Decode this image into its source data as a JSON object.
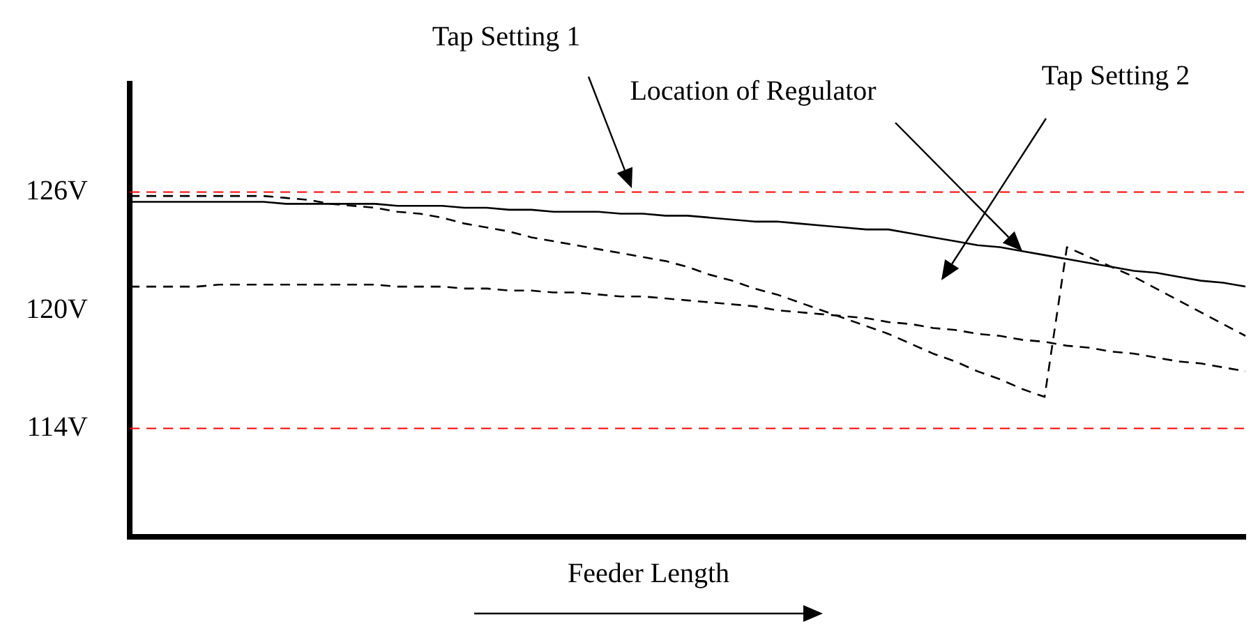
{
  "chart_data": {
    "type": "line",
    "xlabel": "Feeder Length",
    "categories": [
      null,
      null,
      null,
      null,
      null,
      null,
      null,
      null,
      null,
      null,
      null,
      null,
      null,
      null,
      null,
      null,
      null,
      null,
      null,
      null,
      null,
      null,
      null,
      null,
      null,
      null,
      null,
      null,
      null,
      null,
      null,
      null,
      null,
      null,
      null,
      null,
      null,
      null,
      null,
      null,
      null,
      null,
      null,
      null,
      null,
      null,
      null,
      null,
      null,
      null,
      null
    ],
    "ylim": [
      108.5,
      131.5
    ],
    "yticks": [
      {
        "value": 126,
        "label": "126V"
      },
      {
        "value": 120,
        "label": "120V"
      },
      {
        "value": 114,
        "label": "114V"
      }
    ],
    "tick_labels": "y",
    "grid": false,
    "legend": false,
    "marker": "none",
    "series": [
      {
        "color": "#000000",
        "line_style": "solid",
        "values": [
          125.5,
          125.5,
          125.5,
          125.5,
          125.5,
          125.5,
          125.5,
          125.4,
          125.4,
          125.4,
          125.4,
          125.4,
          125.3,
          125.3,
          125.3,
          125.2,
          125.2,
          125.1,
          125.1,
          125.0,
          125.0,
          125.0,
          124.9,
          124.9,
          124.8,
          124.8,
          124.7,
          124.6,
          124.5,
          124.5,
          124.4,
          124.3,
          124.2,
          124.1,
          124.1,
          123.9,
          123.7,
          123.5,
          123.3,
          123.2,
          123.0,
          122.8,
          122.6,
          122.4,
          122.2,
          122.0,
          121.9,
          121.7,
          121.5,
          121.4,
          121.2
        ]
      },
      {
        "color": "#000000",
        "line_style": "dashed",
        "values": [
          125.8,
          125.8,
          125.8,
          125.8,
          125.8,
          125.8,
          125.8,
          125.7,
          125.6,
          125.4,
          125.3,
          125.2,
          125.0,
          124.9,
          124.7,
          124.4,
          124.2,
          124.0,
          123.7,
          123.5,
          123.3,
          123.1,
          122.9,
          122.7,
          122.5,
          122.2,
          121.8,
          121.5,
          121.1,
          120.8,
          120.4,
          120.0,
          119.6,
          119.2,
          118.8,
          118.3,
          117.8,
          117.4,
          116.9,
          116.5,
          116.0,
          115.6,
          123.2,
          122.7,
          122.2,
          121.7,
          121.1,
          120.5,
          119.9,
          119.3,
          118.7
        ]
      },
      {
        "color": "#000000",
        "line_style": "dashed",
        "values": [
          121.2,
          121.2,
          121.2,
          121.2,
          121.3,
          121.3,
          121.3,
          121.3,
          121.3,
          121.3,
          121.3,
          121.3,
          121.2,
          121.2,
          121.2,
          121.1,
          121.1,
          121.0,
          121.0,
          120.9,
          120.9,
          120.8,
          120.7,
          120.7,
          120.6,
          120.5,
          120.4,
          120.3,
          120.2,
          120.0,
          119.9,
          119.8,
          119.7,
          119.6,
          119.4,
          119.3,
          119.1,
          119.0,
          118.8,
          118.7,
          118.5,
          118.4,
          118.2,
          118.1,
          117.9,
          117.8,
          117.6,
          117.4,
          117.3,
          117.1,
          116.9
        ]
      }
    ],
    "ref_lines": [
      {
        "axis": "y",
        "value": 126,
        "color": "#ff0000",
        "line_style": "dashed"
      },
      {
        "axis": "y",
        "value": 114,
        "color": "#ff0000",
        "line_style": "dashed"
      }
    ],
    "annotations": [
      "Tap Setting 1",
      "Location of Regulator",
      "Tap Setting 2"
    ]
  }
}
